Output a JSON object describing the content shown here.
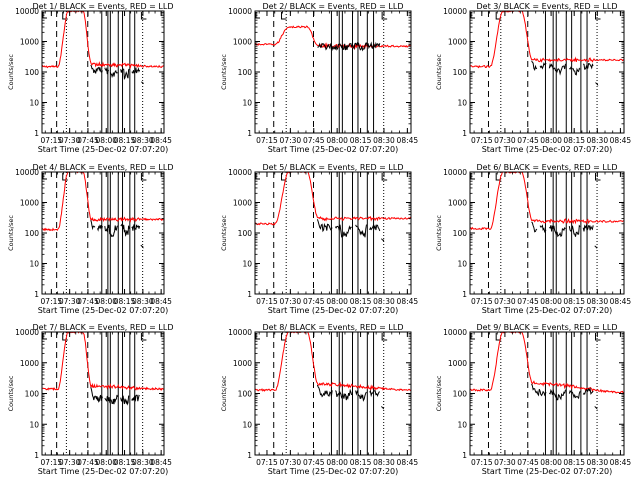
{
  "figure": {
    "series_labels": {
      "black": "Events",
      "red": "LLD"
    },
    "colors": {
      "events": "#000000",
      "lld": "#ff0000",
      "axis": "#000000",
      "background": "#ffffff"
    },
    "layout": "3x3 grid of detector panels"
  },
  "chart_data": [
    {
      "type": "line",
      "panel": "det1",
      "title": "Det 1/ BLACK = Events, RED = LLD",
      "xlabel": "Start Time (25-Dec-02 07:07:20)",
      "ylabel": "Counts/sec",
      "xticks": [
        "07:15",
        "07:30",
        "07:45",
        "08:00",
        "08:15",
        "08:30",
        "08:45"
      ],
      "yticks": [
        "1",
        "10",
        "100",
        "1000",
        "10000"
      ],
      "yscale": "log",
      "xlim_min": [
        0,
        100
      ],
      "ylim": [
        1,
        10000
      ],
      "lld_levels": {
        "pre": 150,
        "peak": 10000,
        "post": 180,
        "tail": 150
      },
      "events_post": 110,
      "events_lo": 70,
      "dashed_min": [
        12,
        37.5
      ],
      "dotted_min": [
        20,
        82.5
      ],
      "solid_min": [
        49,
        54,
        56,
        62.5,
        66,
        72,
        76
      ],
      "gaps_min": [
        [
          50,
          51
        ],
        [
          55,
          55.5
        ],
        [
          62.5,
          64
        ],
        [
          72,
          73
        ]
      ],
      "marker_levels": [],
      "stub": {
        "x": 81.5,
        "y": 48,
        "len": 1.2
      }
    },
    {
      "type": "line",
      "panel": "det2",
      "title": "Det 2/ BLACK = Events, RED = LLD",
      "xlabel": "Start Time (25-Dec-02 07:07:20)",
      "ylabel": "Counts/sec",
      "xticks": [
        "07:15",
        "07:30",
        "07:45",
        "08:00",
        "08:15",
        "08:30",
        "08:45"
      ],
      "yticks": [
        "1",
        "10",
        "100",
        "1000",
        "10000"
      ],
      "yscale": "log",
      "xlim_min": [
        0,
        100
      ],
      "ylim": [
        1,
        10000
      ],
      "lld_levels": {
        "pre": 800,
        "peak": 3000,
        "post": 720,
        "tail": 700
      },
      "events_post": 700,
      "events_lo": 650,
      "dashed_min": [
        12,
        37.5
      ],
      "dotted_min": [
        20,
        82.5
      ],
      "solid_min": [
        49,
        54,
        56,
        62.5,
        66,
        72,
        76
      ],
      "gaps_min": [],
      "marker_levels": [],
      "stub": null
    },
    {
      "type": "line",
      "panel": "det3",
      "title": "Det 3/ BLACK = Events, RED = LLD",
      "xlabel": "Start Time (25-Dec-02 07:07:20)",
      "ylabel": "Counts/sec",
      "xticks": [
        "07:15",
        "07:30",
        "07:45",
        "08:00",
        "08:15",
        "08:30",
        "08:45"
      ],
      "yticks": [
        "1",
        "10",
        "100",
        "1000",
        "10000"
      ],
      "yscale": "log",
      "xlim_min": [
        0,
        100
      ],
      "ylim": [
        1,
        10000
      ],
      "lld_levels": {
        "pre": 150,
        "peak": 10000,
        "post": 250,
        "tail": 250
      },
      "events_post": 150,
      "events_lo": 90,
      "dashed_min": [
        12,
        37.5
      ],
      "dotted_min": [
        20,
        82.5
      ],
      "solid_min": [
        49,
        54,
        56,
        62.5,
        66,
        72,
        76
      ],
      "gaps_min": [
        [
          44,
          45
        ],
        [
          50,
          51
        ],
        [
          62.5,
          64
        ],
        [
          72,
          73
        ]
      ],
      "marker_levels": [],
      "stub": {
        "x": 81.5,
        "y": 45,
        "len": 1.2
      }
    },
    {
      "type": "line",
      "panel": "det4",
      "title": "Det 4/ BLACK = Events, RED = LLD",
      "xlabel": "Start Time (25-Dec-02 07:07:20)",
      "ylabel": "Counts/sec",
      "xticks": [
        "07:15",
        "07:30",
        "07:45",
        "08:00",
        "08:15",
        "08:30",
        "08:45"
      ],
      "yticks": [
        "1",
        "10",
        "100",
        "1000",
        "10000"
      ],
      "yscale": "log",
      "xlim_min": [
        0,
        100
      ],
      "ylim": [
        1,
        10000
      ],
      "lld_levels": {
        "pre": 130,
        "peak": 10000,
        "post": 280,
        "tail": 280
      },
      "events_post": 150,
      "events_lo": 90,
      "dashed_min": [
        12,
        37.5
      ],
      "dotted_min": [
        20,
        82.5
      ],
      "solid_min": [
        49,
        54,
        56,
        62.5,
        66,
        72,
        76
      ],
      "gaps_min": [
        [
          44,
          45
        ],
        [
          50,
          51
        ],
        [
          62.5,
          64
        ],
        [
          72,
          73
        ]
      ],
      "marker_levels": [],
      "stub": {
        "x": 81,
        "y": 40,
        "len": 1.5
      }
    },
    {
      "type": "line",
      "panel": "det5",
      "title": "Det 5/ BLACK = Events, RED = LLD",
      "xlabel": "Start Time (25-Dec-02 07:07:20)",
      "ylabel": "Counts/sec",
      "xticks": [
        "07:15",
        "07:30",
        "07:45",
        "08:00",
        "08:15",
        "08:30",
        "08:45"
      ],
      "yticks": [
        "1",
        "10",
        "100",
        "1000",
        "10000"
      ],
      "yscale": "log",
      "xlim_min": [
        0,
        100
      ],
      "ylim": [
        1,
        10000
      ],
      "lld_levels": {
        "pre": 200,
        "peak": 10000,
        "post": 300,
        "tail": 300
      },
      "events_post": 150,
      "events_lo": 80,
      "dashed_min": [
        12,
        37.5
      ],
      "dotted_min": [
        20,
        82.5
      ],
      "solid_min": [
        49,
        54,
        56,
        62.5,
        66,
        72,
        76
      ],
      "gaps_min": [
        [
          50,
          51
        ],
        [
          62.5,
          64
        ],
        [
          72,
          73
        ]
      ],
      "marker_levels": [],
      "stub": {
        "x": 81,
        "y": 65,
        "len": 1.6
      }
    },
    {
      "type": "line",
      "panel": "det6",
      "title": "Det 6/ BLACK = Events, RED = LLD",
      "xlabel": "Start Time (25-Dec-02 07:07:20)",
      "ylabel": "Counts/sec",
      "xticks": [
        "07:15",
        "07:30",
        "07:45",
        "08:00",
        "08:15",
        "08:30",
        "08:45"
      ],
      "yticks": [
        "1",
        "10",
        "100",
        "1000",
        "10000"
      ],
      "yscale": "log",
      "xlim_min": [
        0,
        100
      ],
      "ylim": [
        1,
        10000
      ],
      "lld_levels": {
        "pre": 140,
        "peak": 10000,
        "post": 250,
        "tail": 240
      },
      "events_post": 140,
      "events_lo": 80,
      "dashed_min": [
        12,
        37.5
      ],
      "dotted_min": [
        20,
        82.5
      ],
      "solid_min": [
        49,
        54,
        56,
        62.5,
        66,
        72,
        76
      ],
      "gaps_min": [
        [
          44,
          45
        ],
        [
          50,
          51
        ],
        [
          62.5,
          64
        ],
        [
          72,
          73
        ]
      ],
      "marker_levels": [],
      "stub": {
        "x": 81,
        "y": 38,
        "len": 1.5
      }
    },
    {
      "type": "line",
      "panel": "det7",
      "title": "Det 7/ BLACK = Events, RED = LLD",
      "xlabel": "Start Time (25-Dec-02 07:07:20)",
      "ylabel": "Counts/sec",
      "xticks": [
        "07:15",
        "07:30",
        "07:45",
        "08:00",
        "08:15",
        "08:30",
        "08:45"
      ],
      "yticks": [
        "1",
        "10",
        "100",
        "1000",
        "10000"
      ],
      "yscale": "log",
      "xlim_min": [
        0,
        100
      ],
      "ylim": [
        1,
        10000
      ],
      "lld_levels": {
        "pre": 140,
        "peak": 10000,
        "post": 170,
        "tail": 140
      },
      "events_post": 70,
      "events_lo": 55,
      "dashed_min": [
        12,
        37.5
      ],
      "dotted_min": [
        20,
        82.5
      ],
      "solid_min": [
        49,
        54,
        56,
        62.5,
        66,
        72,
        76
      ],
      "gaps_min": [
        [
          50,
          51
        ],
        [
          62.5,
          64
        ],
        [
          72,
          73
        ]
      ],
      "marker_levels": [],
      "stub": null
    },
    {
      "type": "line",
      "panel": "det8",
      "title": "Det 8/ BLACK = Events, RED = LLD",
      "xlabel": "Start Time (25-Dec-02 07:07:20)",
      "ylabel": "Counts/sec",
      "xticks": [
        "07:15",
        "07:30",
        "07:45",
        "08:00",
        "08:15",
        "08:30",
        "08:45"
      ],
      "yticks": [
        "1",
        "10",
        "100",
        "1000",
        "10000"
      ],
      "yscale": "log",
      "xlim_min": [
        0,
        100
      ],
      "ylim": [
        1,
        10000
      ],
      "lld_levels": {
        "pre": 130,
        "peak": 10000,
        "post": 200,
        "tail": 130
      },
      "events_post": 100,
      "events_lo": 70,
      "dashed_min": [
        12,
        37.5
      ],
      "dotted_min": [
        20,
        82.5
      ],
      "solid_min": [
        49,
        54,
        56,
        62.5,
        66,
        72,
        76
      ],
      "gaps_min": [
        [
          50,
          51
        ],
        [
          62.5,
          64
        ],
        [
          72,
          73
        ]
      ],
      "marker_levels": [],
      "stub": {
        "x": 81,
        "y": 38,
        "len": 1.4
      }
    },
    {
      "type": "line",
      "panel": "det9",
      "title": "Det 9/ BLACK = Events, RED = LLD",
      "xlabel": "Start Time (25-Dec-02 07:07:20)",
      "ylabel": "Counts/sec",
      "xticks": [
        "07:15",
        "07:30",
        "07:45",
        "08:00",
        "08:15",
        "08:30",
        "08:45"
      ],
      "yticks": [
        "1",
        "10",
        "100",
        "1000",
        "10000"
      ],
      "yscale": "log",
      "xlim_min": [
        0,
        100
      ],
      "ylim": [
        1,
        10000
      ],
      "lld_levels": {
        "pre": 130,
        "peak": 10000,
        "post": 220,
        "tail": 110
      },
      "events_post": 110,
      "events_lo": 70,
      "dashed_min": [
        12,
        37.5
      ],
      "dotted_min": [
        20,
        82.5
      ],
      "solid_min": [
        49,
        54,
        56,
        62.5,
        66,
        72,
        76
      ],
      "gaps_min": [
        [
          50,
          51
        ],
        [
          62.5,
          64
        ],
        [
          72,
          73
        ]
      ],
      "marker_levels": [],
      "stub": {
        "x": 81,
        "y": 38,
        "len": 1.2
      }
    }
  ]
}
